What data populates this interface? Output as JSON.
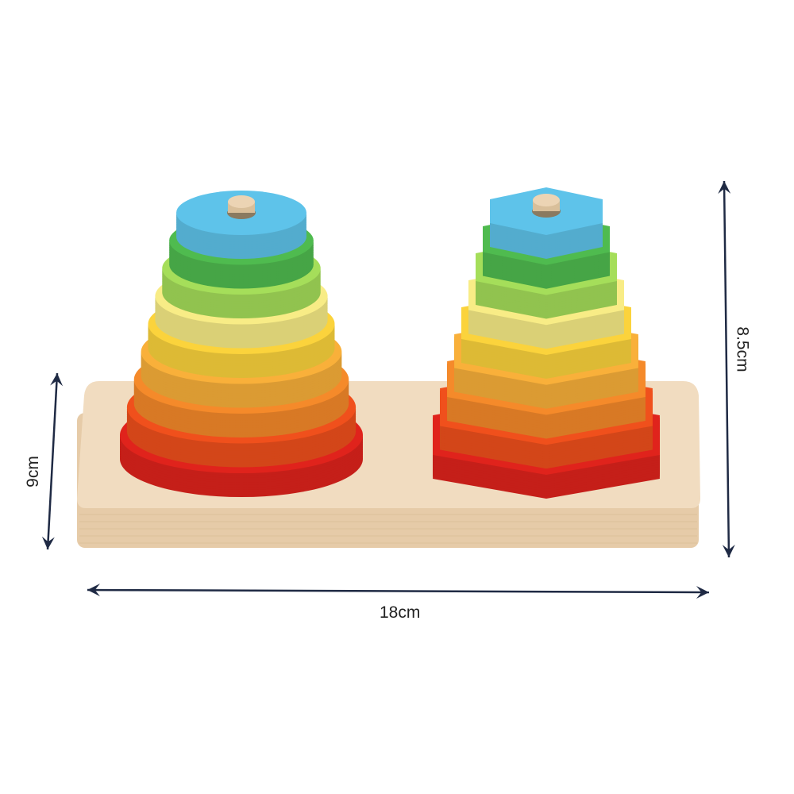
{
  "product": {
    "dimensions": {
      "depth_label": "9cm",
      "height_label": "8.5cm",
      "width_label": "18cm"
    },
    "colors": {
      "board_top": "#f1dcc0",
      "board_edge": "#e6cba8",
      "arrow": "#1f2a44",
      "peg": "#ecd4b4"
    },
    "round_stack_rings": [
      "#e0231c",
      "#f0501c",
      "#f58a2a",
      "#f9b03a",
      "#fbd33c",
      "#f8ec86",
      "#a5de5a",
      "#4fbb4f",
      "#5ec3ea"
    ],
    "hex_stack_rings": [
      "#e0231c",
      "#f0501c",
      "#f58a2a",
      "#f9b03a",
      "#fbd33c",
      "#f8ec86",
      "#a5de5a",
      "#4fbb4f",
      "#5ec3ea"
    ]
  }
}
